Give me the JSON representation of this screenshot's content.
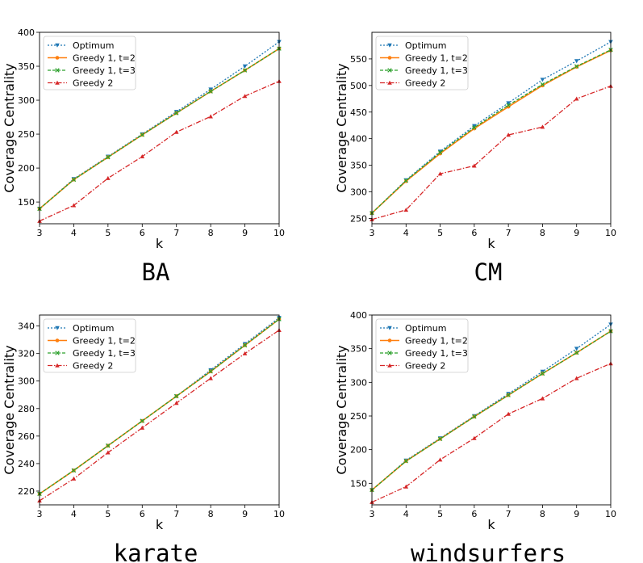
{
  "colors": {
    "optimum": "#1f77b4",
    "greedy1_t2": "#ff7f0e",
    "greedy1_t3": "#2ca02c",
    "greedy2": "#d62728"
  },
  "chart_data": [
    {
      "type": "line",
      "caption": "BA",
      "xlabel": "k",
      "ylabel": "Coverage Centrality",
      "x": [
        3,
        4,
        5,
        6,
        7,
        8,
        9,
        10
      ],
      "xticks": [
        "3",
        "4",
        "5",
        "6",
        "7",
        "8",
        "9",
        "10"
      ],
      "xlim": [
        3,
        10
      ],
      "ylim": [
        118,
        400
      ],
      "yticks": [
        "150",
        "200",
        "250",
        "300",
        "350",
        "400"
      ],
      "ytick_values": [
        150,
        200,
        250,
        300,
        350,
        400
      ],
      "legend": "top-left",
      "series": [
        {
          "name": "Optimum",
          "style": "optimum",
          "values": [
            140,
            184,
            217,
            250,
            283,
            316,
            350,
            386
          ]
        },
        {
          "name": "Greedy 1, t=2",
          "style": "greedy1_t2",
          "values": [
            140,
            183,
            216,
            249,
            281,
            313,
            344,
            376
          ]
        },
        {
          "name": "Greedy 1, t=3",
          "style": "greedy1_t3",
          "values": [
            140,
            183,
            216,
            249,
            281,
            313,
            344,
            376
          ]
        },
        {
          "name": "Greedy 2",
          "style": "greedy2",
          "values": [
            122,
            145,
            185,
            217,
            253,
            276,
            306,
            328
          ]
        }
      ]
    },
    {
      "type": "line",
      "caption": "CM",
      "xlabel": "k",
      "ylabel": "Coverage Centrality",
      "x": [
        3,
        4,
        5,
        6,
        7,
        8,
        9,
        10
      ],
      "xticks": [
        "3",
        "4",
        "5",
        "6",
        "7",
        "8",
        "9",
        "10"
      ],
      "xlim": [
        3,
        10
      ],
      "ylim": [
        240,
        600
      ],
      "yticks": [
        "250",
        "300",
        "350",
        "400",
        "450",
        "500",
        "550"
      ],
      "ytick_values": [
        250,
        300,
        350,
        400,
        450,
        500,
        550
      ],
      "legend": "top-left",
      "series": [
        {
          "name": "Optimum",
          "style": "optimum",
          "values": [
            260,
            322,
            376,
            424,
            467,
            511,
            546,
            582
          ]
        },
        {
          "name": "Greedy 1, t=2",
          "style": "greedy1_t2",
          "values": [
            260,
            320,
            372,
            419,
            460,
            500,
            535,
            566
          ]
        },
        {
          "name": "Greedy 1, t=3",
          "style": "greedy1_t3",
          "values": [
            260,
            321,
            374,
            421,
            463,
            502,
            536,
            567
          ]
        },
        {
          "name": "Greedy 2",
          "style": "greedy2",
          "values": [
            248,
            266,
            334,
            349,
            407,
            422,
            475,
            499
          ]
        }
      ]
    },
    {
      "type": "line",
      "caption": "karate",
      "xlabel": "k",
      "ylabel": "Coverage Centrality",
      "x": [
        3,
        4,
        5,
        6,
        7,
        8,
        9,
        10
      ],
      "xticks": [
        "3",
        "4",
        "5",
        "6",
        "7",
        "8",
        "9",
        "10"
      ],
      "xlim": [
        3,
        10
      ],
      "ylim": [
        210,
        348
      ],
      "yticks": [
        "220",
        "240",
        "260",
        "280",
        "300",
        "320",
        "340"
      ],
      "ytick_values": [
        220,
        240,
        260,
        280,
        300,
        320,
        340
      ],
      "legend": "top-left",
      "series": [
        {
          "name": "Optimum",
          "style": "optimum",
          "values": [
            218,
            235,
            253,
            271,
            289,
            308,
            327,
            346
          ]
        },
        {
          "name": "Greedy 1, t=2",
          "style": "greedy1_t2",
          "values": [
            218,
            235,
            253,
            271,
            289,
            307,
            326,
            345
          ]
        },
        {
          "name": "Greedy 1, t=3",
          "style": "greedy1_t3",
          "values": [
            218,
            235,
            253,
            271,
            289,
            307,
            326,
            345
          ]
        },
        {
          "name": "Greedy 2",
          "style": "greedy2",
          "values": [
            213,
            229,
            248,
            266,
            284,
            302,
            320,
            337
          ]
        }
      ]
    },
    {
      "type": "line",
      "caption": "windsurfers",
      "xlabel": "k",
      "ylabel": "Coverage Centrality",
      "x": [
        3,
        4,
        5,
        6,
        7,
        8,
        9,
        10
      ],
      "xticks": [
        "3",
        "4",
        "5",
        "6",
        "7",
        "8",
        "9",
        "10"
      ],
      "xlim": [
        3,
        10
      ],
      "ylim": [
        118,
        400
      ],
      "yticks": [
        "150",
        "200",
        "250",
        "300",
        "350",
        "400"
      ],
      "ytick_values": [
        150,
        200,
        250,
        300,
        350,
        400
      ],
      "legend": "top-left",
      "series": [
        {
          "name": "Optimum",
          "style": "optimum",
          "values": [
            140,
            184,
            217,
            250,
            283,
            316,
            350,
            386
          ]
        },
        {
          "name": "Greedy 1, t=2",
          "style": "greedy1_t2",
          "values": [
            140,
            183,
            216,
            249,
            281,
            313,
            344,
            376
          ]
        },
        {
          "name": "Greedy 1, t=3",
          "style": "greedy1_t3",
          "values": [
            140,
            183,
            216,
            249,
            281,
            313,
            344,
            376
          ]
        },
        {
          "name": "Greedy 2",
          "style": "greedy2",
          "values": [
            122,
            145,
            185,
            217,
            253,
            276,
            306,
            328
          ]
        }
      ]
    }
  ]
}
